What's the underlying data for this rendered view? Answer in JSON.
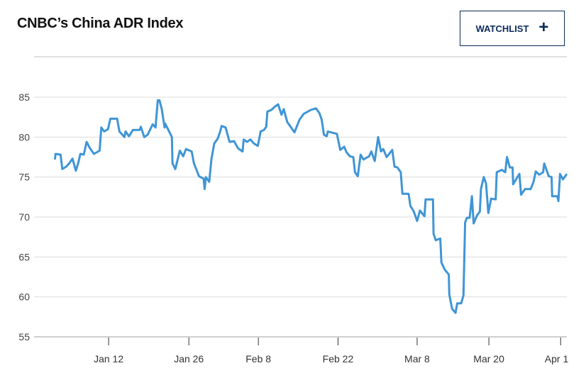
{
  "header": {
    "title": "CNBC’s China ADR Index",
    "watchlist_label": "WATCHLIST",
    "watchlist_icon": "plus-icon"
  },
  "colors": {
    "line": "#3f95d6",
    "button_border": "#0b2a5b",
    "grid": "#dcdcdc"
  },
  "chart_data": {
    "type": "line",
    "title": "CNBC’s China ADR Index",
    "xlabel": "",
    "ylabel": "",
    "x_unit": "day of year 2020 (approx.)",
    "xlim": [
      -1.2,
      93.1
    ],
    "ylim": [
      55,
      85
    ],
    "grid": true,
    "yticks": [
      55,
      60,
      65,
      70,
      75,
      80,
      85
    ],
    "xticks": [
      {
        "x": 12,
        "label": "Jan 12"
      },
      {
        "x": 26.2,
        "label": "Jan 26"
      },
      {
        "x": 38.5,
        "label": "Feb 8"
      },
      {
        "x": 52.6,
        "label": "Feb 22"
      },
      {
        "x": 66.6,
        "label": "Mar 8"
      },
      {
        "x": 79.3,
        "label": "Mar 20"
      },
      {
        "x": 92,
        "label": "Apr 1"
      }
    ],
    "series": [
      {
        "name": "China ADR Index",
        "points": [
          [
            2.5,
            77.3
          ],
          [
            2.6,
            77.9
          ],
          [
            3.5,
            77.8
          ],
          [
            3.8,
            76.0
          ],
          [
            4.5,
            76.3
          ],
          [
            5.0,
            76.7
          ],
          [
            5.6,
            77.3
          ],
          [
            6.2,
            75.8
          ],
          [
            6.6,
            76.7
          ],
          [
            7.0,
            77.9
          ],
          [
            7.6,
            77.8
          ],
          [
            8.1,
            79.4
          ],
          [
            8.7,
            78.6
          ],
          [
            9.4,
            77.9
          ],
          [
            10.4,
            78.3
          ],
          [
            10.7,
            81.2
          ],
          [
            11.2,
            80.7
          ],
          [
            11.9,
            81.0
          ],
          [
            12.3,
            82.3
          ],
          [
            13.5,
            82.3
          ],
          [
            13.9,
            80.7
          ],
          [
            14.8,
            80.0
          ],
          [
            15.0,
            80.7
          ],
          [
            15.6,
            80.1
          ],
          [
            16.3,
            80.9
          ],
          [
            17.5,
            80.9
          ],
          [
            17.7,
            81.3
          ],
          [
            18.3,
            80.0
          ],
          [
            18.9,
            80.3
          ],
          [
            19.8,
            81.6
          ],
          [
            20.3,
            81.2
          ],
          [
            20.7,
            84.6
          ],
          [
            21.0,
            84.6
          ],
          [
            21.4,
            83.5
          ],
          [
            21.9,
            81.2
          ],
          [
            22.0,
            81.7
          ],
          [
            23.2,
            80.0
          ],
          [
            23.3,
            76.7
          ],
          [
            23.8,
            76.0
          ],
          [
            24.6,
            78.3
          ],
          [
            25.2,
            77.6
          ],
          [
            25.7,
            78.5
          ],
          [
            26.7,
            78.2
          ],
          [
            27.1,
            76.7
          ],
          [
            28.0,
            75.1
          ],
          [
            28.8,
            74.8
          ],
          [
            29.0,
            73.5
          ],
          [
            29.2,
            75.0
          ],
          [
            29.8,
            74.4
          ],
          [
            30.2,
            77.3
          ],
          [
            30.7,
            79.2
          ],
          [
            31.3,
            79.8
          ],
          [
            31.7,
            80.6
          ],
          [
            32.0,
            81.4
          ],
          [
            32.7,
            81.2
          ],
          [
            33.4,
            79.4
          ],
          [
            34.2,
            79.5
          ],
          [
            34.9,
            78.6
          ],
          [
            35.7,
            78.2
          ],
          [
            35.9,
            79.7
          ],
          [
            36.5,
            79.4
          ],
          [
            37.1,
            79.7
          ],
          [
            37.7,
            79.2
          ],
          [
            38.4,
            78.9
          ],
          [
            38.9,
            80.7
          ],
          [
            39.5,
            80.9
          ],
          [
            39.9,
            81.3
          ],
          [
            40.1,
            83.2
          ],
          [
            40.8,
            83.4
          ],
          [
            41.4,
            83.8
          ],
          [
            42.0,
            84.1
          ],
          [
            42.6,
            82.8
          ],
          [
            43.0,
            83.5
          ],
          [
            43.6,
            81.9
          ],
          [
            44.5,
            81.0
          ],
          [
            44.9,
            80.6
          ],
          [
            45.8,
            82.2
          ],
          [
            46.5,
            82.9
          ],
          [
            47.8,
            83.4
          ],
          [
            48.7,
            83.6
          ],
          [
            49.3,
            83.0
          ],
          [
            49.7,
            82.2
          ],
          [
            50.1,
            80.3
          ],
          [
            50.6,
            80.1
          ],
          [
            50.8,
            80.7
          ],
          [
            52.4,
            80.4
          ],
          [
            53.0,
            78.4
          ],
          [
            53.7,
            78.8
          ],
          [
            54.1,
            78.1
          ],
          [
            54.7,
            77.6
          ],
          [
            55.3,
            77.5
          ],
          [
            55.6,
            75.6
          ],
          [
            56.1,
            75.1
          ],
          [
            56.6,
            77.8
          ],
          [
            57.1,
            77.2
          ],
          [
            58.1,
            77.6
          ],
          [
            58.5,
            78.2
          ],
          [
            59.1,
            77.0
          ],
          [
            59.7,
            80.0
          ],
          [
            60.2,
            78.2
          ],
          [
            60.6,
            78.5
          ],
          [
            61.2,
            77.5
          ],
          [
            62.2,
            78.4
          ],
          [
            62.6,
            76.3
          ],
          [
            63.1,
            76.2
          ],
          [
            63.7,
            75.6
          ],
          [
            64.0,
            72.9
          ],
          [
            65.1,
            72.9
          ],
          [
            65.4,
            71.4
          ],
          [
            66.0,
            70.7
          ],
          [
            66.6,
            69.5
          ],
          [
            67.1,
            70.8
          ],
          [
            67.9,
            70.1
          ],
          [
            68.1,
            72.2
          ],
          [
            69.4,
            72.2
          ],
          [
            69.5,
            67.9
          ],
          [
            69.9,
            67.1
          ],
          [
            70.7,
            67.3
          ],
          [
            70.9,
            64.3
          ],
          [
            71.5,
            63.4
          ],
          [
            72.2,
            62.8
          ],
          [
            72.3,
            60.3
          ],
          [
            72.8,
            58.5
          ],
          [
            73.4,
            58.0
          ],
          [
            73.7,
            59.2
          ],
          [
            74.4,
            59.2
          ],
          [
            74.8,
            60.2
          ],
          [
            75.1,
            69.3
          ],
          [
            75.4,
            69.9
          ],
          [
            75.9,
            69.9
          ],
          [
            76.3,
            72.6
          ],
          [
            76.6,
            69.2
          ],
          [
            77.2,
            70.2
          ],
          [
            77.7,
            70.7
          ],
          [
            77.9,
            73.5
          ],
          [
            78.4,
            75.0
          ],
          [
            78.8,
            74.2
          ],
          [
            79.2,
            70.5
          ],
          [
            79.7,
            72.3
          ],
          [
            80.5,
            72.2
          ],
          [
            80.7,
            75.6
          ],
          [
            81.6,
            75.9
          ],
          [
            82.2,
            75.6
          ],
          [
            82.5,
            77.5
          ],
          [
            83.0,
            76.2
          ],
          [
            83.5,
            76.2
          ],
          [
            83.6,
            74.1
          ],
          [
            84.7,
            75.4
          ],
          [
            85.0,
            72.8
          ],
          [
            85.7,
            73.5
          ],
          [
            86.7,
            73.5
          ],
          [
            87.2,
            74.4
          ],
          [
            87.6,
            75.7
          ],
          [
            88.2,
            75.3
          ],
          [
            88.9,
            75.6
          ],
          [
            89.1,
            76.7
          ],
          [
            89.9,
            75.1
          ],
          [
            90.4,
            75.0
          ],
          [
            90.5,
            72.6
          ],
          [
            91.4,
            72.6
          ],
          [
            91.6,
            72.0
          ],
          [
            91.9,
            75.4
          ],
          [
            92.4,
            74.7
          ],
          [
            93.0,
            75.3
          ]
        ]
      }
    ]
  }
}
